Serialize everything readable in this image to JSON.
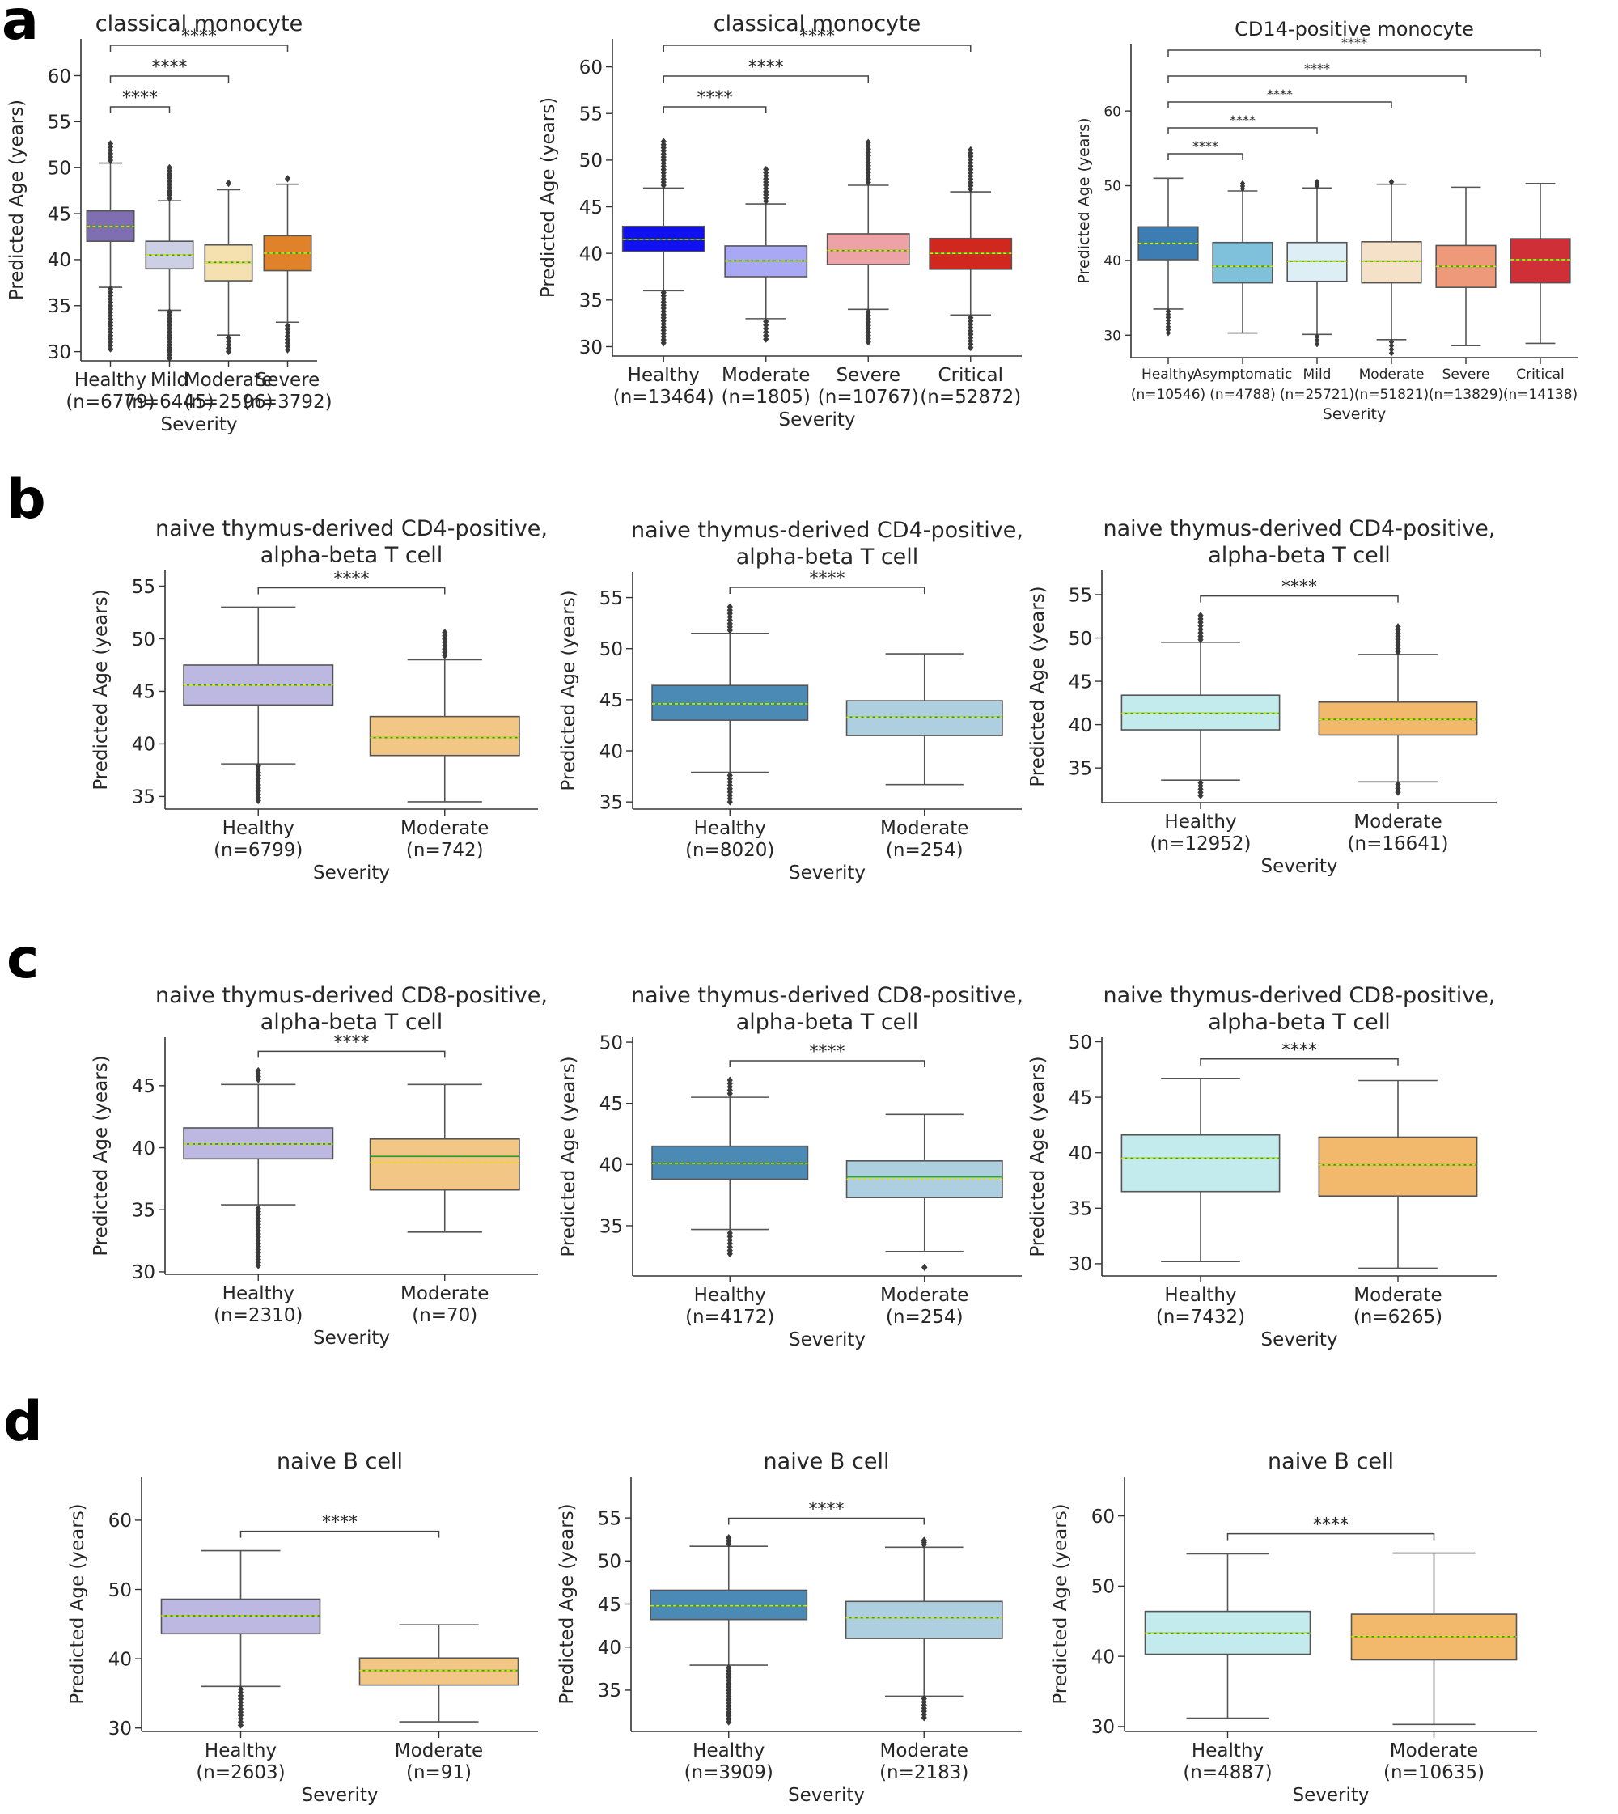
{
  "figure": {
    "panel_letters": [
      "a",
      "b",
      "c",
      "d"
    ]
  },
  "chart_data": [
    {
      "panel": "a",
      "type": "box",
      "title": [
        "classical monocyte"
      ],
      "xlabel": "Severity",
      "ylabel": "Predicted Age (years)",
      "ylim": [
        29,
        64
      ],
      "yticks": [
        30,
        35,
        40,
        45,
        50,
        55,
        60
      ],
      "categories": [
        "Healthy",
        "Mild",
        "Moderate",
        "Severe"
      ],
      "n_labels": [
        "(n=6779)",
        "(n=6445)",
        "(n=2596)",
        "(n=3792)"
      ],
      "colors": [
        "#7F6FB2",
        "#CDD0E5",
        "#F5E1B0",
        "#E0822A"
      ],
      "boxes": [
        {
          "q1": 42.0,
          "median": 43.6,
          "mean": 43.6,
          "q3": 45.3,
          "whislo": 37.0,
          "whishi": 50.5,
          "fliers_low": [
            30.3,
            36.8
          ],
          "fliers_high": [
            50.8,
            52.6
          ]
        },
        {
          "q1": 39.0,
          "median": 40.5,
          "mean": 40.5,
          "q3": 42.0,
          "whislo": 34.5,
          "whishi": 46.4,
          "fliers_low": [
            29.3,
            34.3
          ],
          "fliers_high": [
            46.7,
            50.0
          ]
        },
        {
          "q1": 37.7,
          "median": 39.7,
          "mean": 39.7,
          "q3": 41.6,
          "whislo": 31.8,
          "whishi": 47.6,
          "fliers_low": [
            30.0,
            31.5
          ],
          "fliers_high": [
            48.3
          ]
        },
        {
          "q1": 38.8,
          "median": 40.7,
          "mean": 40.7,
          "q3": 42.6,
          "whislo": 33.2,
          "whishi": 48.2,
          "fliers_low": [
            30.2,
            32.8
          ],
          "fliers_high": [
            48.8
          ]
        }
      ],
      "sig": [
        {
          "from": 0,
          "to": 1,
          "label": "****"
        },
        {
          "from": 0,
          "to": 2,
          "label": "****"
        },
        {
          "from": 0,
          "to": 3,
          "label": "****"
        }
      ]
    },
    {
      "panel": "a",
      "type": "box",
      "title": [
        "classical monocyte"
      ],
      "xlabel": "Severity",
      "ylabel": "Predicted Age (years)",
      "ylim": [
        29,
        63
      ],
      "yticks": [
        30,
        35,
        40,
        45,
        50,
        55,
        60
      ],
      "categories": [
        "Healthy",
        "Moderate",
        "Severe",
        "Critical"
      ],
      "n_labels": [
        "(n=13464)",
        "(n=1805)",
        "(n=10767)",
        "(n=52872)"
      ],
      "colors": [
        "#1010F0",
        "#A8A8F5",
        "#EDA2A6",
        "#D0281E"
      ],
      "boxes": [
        {
          "q1": 40.2,
          "median": 41.5,
          "mean": 41.5,
          "q3": 42.9,
          "whislo": 36.0,
          "whishi": 47.0,
          "fliers_low": [
            30.4,
            35.8
          ],
          "fliers_high": [
            47.3,
            52.0
          ]
        },
        {
          "q1": 37.5,
          "median": 39.2,
          "mean": 39.2,
          "q3": 40.8,
          "whislo": 33.0,
          "whishi": 45.3,
          "fliers_low": [
            30.8,
            32.7
          ],
          "fliers_high": [
            45.6,
            49.0
          ]
        },
        {
          "q1": 38.8,
          "median": 40.3,
          "mean": 40.3,
          "q3": 42.1,
          "whislo": 34.0,
          "whishi": 47.3,
          "fliers_low": [
            30.5,
            33.7
          ],
          "fliers_high": [
            47.6,
            51.9
          ]
        },
        {
          "q1": 38.3,
          "median": 40.0,
          "mean": 40.0,
          "q3": 41.6,
          "whislo": 33.4,
          "whishi": 46.6,
          "fliers_low": [
            29.9,
            33.1
          ],
          "fliers_high": [
            46.9,
            51.1
          ]
        }
      ],
      "sig": [
        {
          "from": 0,
          "to": 1,
          "label": "****"
        },
        {
          "from": 0,
          "to": 2,
          "label": "****"
        },
        {
          "from": 0,
          "to": 3,
          "label": "****"
        }
      ]
    },
    {
      "panel": "a",
      "type": "box",
      "title": [
        "CD14-positive monocyte"
      ],
      "xlabel": "Severity",
      "ylabel": "Predicted Age (years)",
      "ylim": [
        27,
        69
      ],
      "yticks": [
        30,
        40,
        50,
        60
      ],
      "categories": [
        "Healthy",
        "Asymptomatic",
        "Mild",
        "Moderate",
        "Severe",
        "Critical"
      ],
      "n_labels": [
        "(n=10546)",
        "(n=4788)",
        "(n=25721)",
        "(n=51821)",
        "(n=13829)",
        "(n=14138)"
      ],
      "colors": [
        "#3E7DB3",
        "#7FC1DA",
        "#DDEEF5",
        "#F5E1C8",
        "#EE9A7A",
        "#CF2F36"
      ],
      "boxes": [
        {
          "q1": 40.1,
          "median": 42.3,
          "mean": 42.3,
          "q3": 44.5,
          "whislo": 33.5,
          "whishi": 51.0,
          "fliers_low": [
            30.3,
            33.2
          ],
          "fliers_high": []
        },
        {
          "q1": 37.0,
          "median": 39.2,
          "mean": 39.2,
          "q3": 42.4,
          "whislo": 30.3,
          "whishi": 49.3,
          "fliers_low": [],
          "fliers_high": [
            49.6,
            50.3
          ]
        },
        {
          "q1": 37.2,
          "median": 39.9,
          "mean": 39.9,
          "q3": 42.4,
          "whislo": 30.1,
          "whishi": 49.7,
          "fliers_low": [
            28.8,
            29.8
          ],
          "fliers_high": [
            50.0,
            50.5
          ]
        },
        {
          "q1": 37.0,
          "median": 39.9,
          "mean": 39.9,
          "q3": 42.5,
          "whislo": 29.4,
          "whishi": 50.2,
          "fliers_low": [
            27.6,
            29.1
          ],
          "fliers_high": [
            50.5
          ]
        },
        {
          "q1": 36.4,
          "median": 39.2,
          "mean": 39.2,
          "q3": 42.0,
          "whislo": 28.6,
          "whishi": 49.8,
          "fliers_low": [],
          "fliers_high": []
        },
        {
          "q1": 37.0,
          "median": 40.1,
          "mean": 40.1,
          "q3": 42.9,
          "whislo": 28.9,
          "whishi": 50.3,
          "fliers_low": [],
          "fliers_high": []
        }
      ],
      "sig": [
        {
          "from": 0,
          "to": 1,
          "label": "****"
        },
        {
          "from": 0,
          "to": 2,
          "label": "****"
        },
        {
          "from": 0,
          "to": 3,
          "label": "****"
        },
        {
          "from": 0,
          "to": 4,
          "label": "****"
        },
        {
          "from": 0,
          "to": 5,
          "label": "****"
        }
      ]
    },
    {
      "panel": "b",
      "type": "box",
      "title": [
        "naive thymus-derived CD4-positive,",
        "alpha-beta T cell"
      ],
      "xlabel": "Severity",
      "ylabel": "Predicted Age (years)",
      "ylim": [
        33.8,
        56.5
      ],
      "yticks": [
        35,
        40,
        45,
        50,
        55
      ],
      "categories": [
        "Healthy",
        "Moderate"
      ],
      "n_labels": [
        "(n=6799)",
        "(n=742)"
      ],
      "colors": [
        "#BDB8E2",
        "#F2C786"
      ],
      "boxes": [
        {
          "q1": 43.7,
          "median": 45.6,
          "mean": 45.6,
          "q3": 47.5,
          "whislo": 38.1,
          "whishi": 53.0,
          "fliers_low": [
            34.6,
            37.9
          ],
          "fliers_high": []
        },
        {
          "q1": 38.9,
          "median": 40.6,
          "mean": 40.6,
          "q3": 42.6,
          "whislo": 34.5,
          "whishi": 48.0,
          "fliers_low": [],
          "fliers_high": [
            48.4,
            50.6
          ]
        }
      ],
      "sig": [
        {
          "from": 0,
          "to": 1,
          "label": "****"
        }
      ]
    },
    {
      "panel": "b",
      "type": "box",
      "title": [
        "naive thymus-derived CD4-positive,",
        "alpha-beta T cell"
      ],
      "xlabel": "Severity",
      "ylabel": "Predicted Age (years)",
      "ylim": [
        34.3,
        57.5
      ],
      "yticks": [
        35,
        40,
        45,
        50,
        55
      ],
      "categories": [
        "Healthy",
        "Moderate"
      ],
      "n_labels": [
        "(n=8020)",
        "(n=254)"
      ],
      "colors": [
        "#4C8AB6",
        "#AECFE0"
      ],
      "boxes": [
        {
          "q1": 43.0,
          "median": 44.6,
          "mean": 44.6,
          "q3": 46.4,
          "whislo": 37.9,
          "whishi": 51.5,
          "fliers_low": [
            35.0,
            37.6
          ],
          "fliers_high": [
            51.8,
            54.1
          ]
        },
        {
          "q1": 41.5,
          "median": 43.3,
          "mean": 43.3,
          "q3": 44.9,
          "whislo": 36.7,
          "whishi": 49.5,
          "fliers_low": [],
          "fliers_high": []
        }
      ],
      "sig": [
        {
          "from": 0,
          "to": 1,
          "label": "****"
        }
      ]
    },
    {
      "panel": "b",
      "type": "box",
      "title": [
        "naive thymus-derived CD4-positive,",
        "alpha-beta T cell"
      ],
      "xlabel": "Severity",
      "ylabel": "Predicted Age (years)",
      "ylim": [
        31.0,
        57.8
      ],
      "yticks": [
        35,
        40,
        45,
        50,
        55
      ],
      "categories": [
        "Healthy",
        "Moderate"
      ],
      "n_labels": [
        "(n=12952)",
        "(n=16641)"
      ],
      "colors": [
        "#C3EAEC",
        "#F2B96C"
      ],
      "boxes": [
        {
          "q1": 39.4,
          "median": 41.3,
          "mean": 41.3,
          "q3": 43.4,
          "whislo": 33.6,
          "whishi": 49.5,
          "fliers_low": [
            31.8,
            33.3
          ],
          "fliers_high": [
            49.8,
            52.6
          ]
        },
        {
          "q1": 38.8,
          "median": 40.6,
          "mean": 40.6,
          "q3": 42.6,
          "whislo": 33.4,
          "whishi": 48.1,
          "fliers_low": [
            32.2,
            33.1
          ],
          "fliers_high": [
            48.4,
            51.3
          ]
        }
      ],
      "sig": [
        {
          "from": 0,
          "to": 1,
          "label": "****"
        }
      ]
    },
    {
      "panel": "c",
      "type": "box",
      "title": [
        "naive thymus-derived CD8-positive,",
        "alpha-beta T cell"
      ],
      "xlabel": "Severity",
      "ylabel": "Predicted Age (years)",
      "ylim": [
        29.8,
        48.9
      ],
      "yticks": [
        30,
        35,
        40,
        45
      ],
      "categories": [
        "Healthy",
        "Moderate"
      ],
      "n_labels": [
        "(n=2310)",
        "(n=70)"
      ],
      "colors": [
        "#BDB8E2",
        "#F2C786"
      ],
      "boxes": [
        {
          "q1": 39.1,
          "median": 40.3,
          "mean": 40.3,
          "q3": 41.6,
          "whislo": 35.4,
          "whishi": 45.1,
          "fliers_low": [
            30.5,
            35.1
          ],
          "fliers_high": [
            45.5,
            46.2
          ]
        },
        {
          "q1": 36.6,
          "median": 39.3,
          "mean": 38.8,
          "q3": 40.7,
          "whislo": 33.2,
          "whishi": 45.1,
          "fliers_low": [],
          "fliers_high": []
        }
      ],
      "sig": [
        {
          "from": 0,
          "to": 1,
          "label": "****"
        }
      ]
    },
    {
      "panel": "c",
      "type": "box",
      "title": [
        "naive thymus-derived CD8-positive,",
        "alpha-beta T cell"
      ],
      "xlabel": "Severity",
      "ylabel": "Predicted Age (years)",
      "ylim": [
        30.9,
        50.4
      ],
      "yticks": [
        35,
        40,
        45,
        50
      ],
      "categories": [
        "Healthy",
        "Moderate"
      ],
      "n_labels": [
        "(n=4172)",
        "(n=254)"
      ],
      "colors": [
        "#4C8AB6",
        "#AECFE0"
      ],
      "boxes": [
        {
          "q1": 38.8,
          "median": 40.1,
          "mean": 40.1,
          "q3": 41.5,
          "whislo": 34.7,
          "whishi": 45.5,
          "fliers_low": [
            32.7,
            34.4
          ],
          "fliers_high": [
            45.8,
            46.9
          ]
        },
        {
          "q1": 37.3,
          "median": 39.0,
          "mean": 38.8,
          "q3": 40.3,
          "whislo": 32.9,
          "whishi": 44.1,
          "fliers_low": [
            31.6
          ],
          "fliers_high": []
        }
      ],
      "sig": [
        {
          "from": 0,
          "to": 1,
          "label": "****"
        }
      ]
    },
    {
      "panel": "c",
      "type": "box",
      "title": [
        "naive thymus-derived CD8-positive,",
        "alpha-beta T cell"
      ],
      "xlabel": "Severity",
      "ylabel": "Predicted Age (years)",
      "ylim": [
        28.9,
        50.4
      ],
      "yticks": [
        30,
        35,
        40,
        45,
        50
      ],
      "categories": [
        "Healthy",
        "Moderate"
      ],
      "n_labels": [
        "(n=7432)",
        "(n=6265)"
      ],
      "colors": [
        "#C3EAEC",
        "#F2B96C"
      ],
      "boxes": [
        {
          "q1": 36.5,
          "median": 39.5,
          "mean": 39.5,
          "q3": 41.6,
          "whislo": 30.2,
          "whishi": 46.7,
          "fliers_low": [],
          "fliers_high": []
        },
        {
          "q1": 36.1,
          "median": 38.9,
          "mean": 38.9,
          "q3": 41.4,
          "whislo": 29.6,
          "whishi": 46.5,
          "fliers_low": [],
          "fliers_high": []
        }
      ],
      "sig": [
        {
          "from": 0,
          "to": 1,
          "label": "****"
        }
      ]
    },
    {
      "panel": "d",
      "type": "box",
      "title": [
        "naive B cell"
      ],
      "xlabel": "Severity",
      "ylabel": "Predicted Age (years)",
      "ylim": [
        29.5,
        66.3
      ],
      "yticks": [
        30,
        40,
        50,
        60
      ],
      "categories": [
        "Healthy",
        "Moderate"
      ],
      "n_labels": [
        "(n=2603)",
        "(n=91)"
      ],
      "colors": [
        "#BDB8E2",
        "#F2C786"
      ],
      "boxes": [
        {
          "q1": 43.6,
          "median": 46.2,
          "mean": 46.2,
          "q3": 48.6,
          "whislo": 36.0,
          "whishi": 55.6,
          "fliers_low": [
            30.4,
            35.6
          ],
          "fliers_high": []
        },
        {
          "q1": 36.2,
          "median": 38.3,
          "mean": 38.3,
          "q3": 40.1,
          "whislo": 30.9,
          "whishi": 44.9,
          "fliers_low": [],
          "fliers_high": []
        }
      ],
      "sig": [
        {
          "from": 0,
          "to": 1,
          "label": "****"
        }
      ]
    },
    {
      "panel": "d",
      "type": "box",
      "title": [
        "naive B cell"
      ],
      "xlabel": "Severity",
      "ylabel": "Predicted Age (years)",
      "ylim": [
        30.2,
        59.8
      ],
      "yticks": [
        35,
        40,
        45,
        50,
        55
      ],
      "categories": [
        "Healthy",
        "Moderate"
      ],
      "n_labels": [
        "(n=3909)",
        "(n=2183)"
      ],
      "colors": [
        "#4C8AB6",
        "#AECFE0"
      ],
      "boxes": [
        {
          "q1": 43.2,
          "median": 44.8,
          "mean": 44.8,
          "q3": 46.6,
          "whislo": 37.9,
          "whishi": 51.7,
          "fliers_low": [
            31.3,
            37.6
          ],
          "fliers_high": [
            52.0,
            52.7
          ]
        },
        {
          "q1": 41.0,
          "median": 43.4,
          "mean": 43.4,
          "q3": 45.3,
          "whislo": 34.3,
          "whishi": 51.6,
          "fliers_low": [
            31.8,
            34.0
          ],
          "fliers_high": [
            51.9,
            52.4
          ]
        }
      ],
      "sig": [
        {
          "from": 0,
          "to": 1,
          "label": "****"
        }
      ]
    },
    {
      "panel": "d",
      "type": "box",
      "title": [
        "naive B cell"
      ],
      "xlabel": "Severity",
      "ylabel": "Predicted Age (years)",
      "ylim": [
        29.3,
        65.6
      ],
      "yticks": [
        30,
        40,
        50,
        60
      ],
      "categories": [
        "Healthy",
        "Moderate"
      ],
      "n_labels": [
        "(n=4887)",
        "(n=10635)"
      ],
      "colors": [
        "#C3EAEC",
        "#F2B96C"
      ],
      "boxes": [
        {
          "q1": 40.3,
          "median": 43.3,
          "mean": 43.3,
          "q3": 46.4,
          "whislo": 31.2,
          "whishi": 54.6,
          "fliers_low": [],
          "fliers_high": []
        },
        {
          "q1": 39.5,
          "median": 42.8,
          "mean": 42.8,
          "q3": 46.0,
          "whislo": 30.3,
          "whishi": 54.7,
          "fliers_low": [],
          "fliers_high": []
        }
      ],
      "sig": [
        {
          "from": 0,
          "to": 1,
          "label": "****"
        }
      ]
    }
  ]
}
